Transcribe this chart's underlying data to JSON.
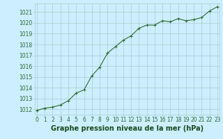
{
  "x": [
    0,
    1,
    2,
    3,
    4,
    5,
    6,
    7,
    8,
    9,
    10,
    11,
    12,
    13,
    14,
    15,
    16,
    17,
    18,
    19,
    20,
    21,
    22,
    23
  ],
  "y": [
    1011.9,
    1012.1,
    1012.2,
    1012.4,
    1012.8,
    1013.5,
    1013.8,
    1015.1,
    1015.9,
    1017.2,
    1017.8,
    1018.4,
    1018.8,
    1019.5,
    1019.8,
    1019.8,
    1020.2,
    1020.1,
    1020.4,
    1020.2,
    1020.3,
    1020.5,
    1021.1,
    1021.5
  ],
  "ylim": [
    1011.5,
    1021.8
  ],
  "xlim": [
    -0.3,
    23.3
  ],
  "yticks": [
    1012,
    1013,
    1014,
    1015,
    1016,
    1017,
    1018,
    1019,
    1020,
    1021
  ],
  "xticks": [
    0,
    1,
    2,
    3,
    4,
    5,
    6,
    7,
    8,
    9,
    10,
    11,
    12,
    13,
    14,
    15,
    16,
    17,
    18,
    19,
    20,
    21,
    22,
    23
  ],
  "xlabel": "Graphe pression niveau de la mer (hPa)",
  "line_color": "#2d6a2d",
  "marker": "+",
  "marker_size": 3,
  "bg_color": "#cceeff",
  "grid_color": "#aacccc",
  "grid_alpha": 1.0,
  "tick_fontsize": 5.5,
  "xlabel_fontsize": 7,
  "xlabel_color": "#1a4a1a",
  "tick_color": "#2d6a2d",
  "line_width": 0.8
}
